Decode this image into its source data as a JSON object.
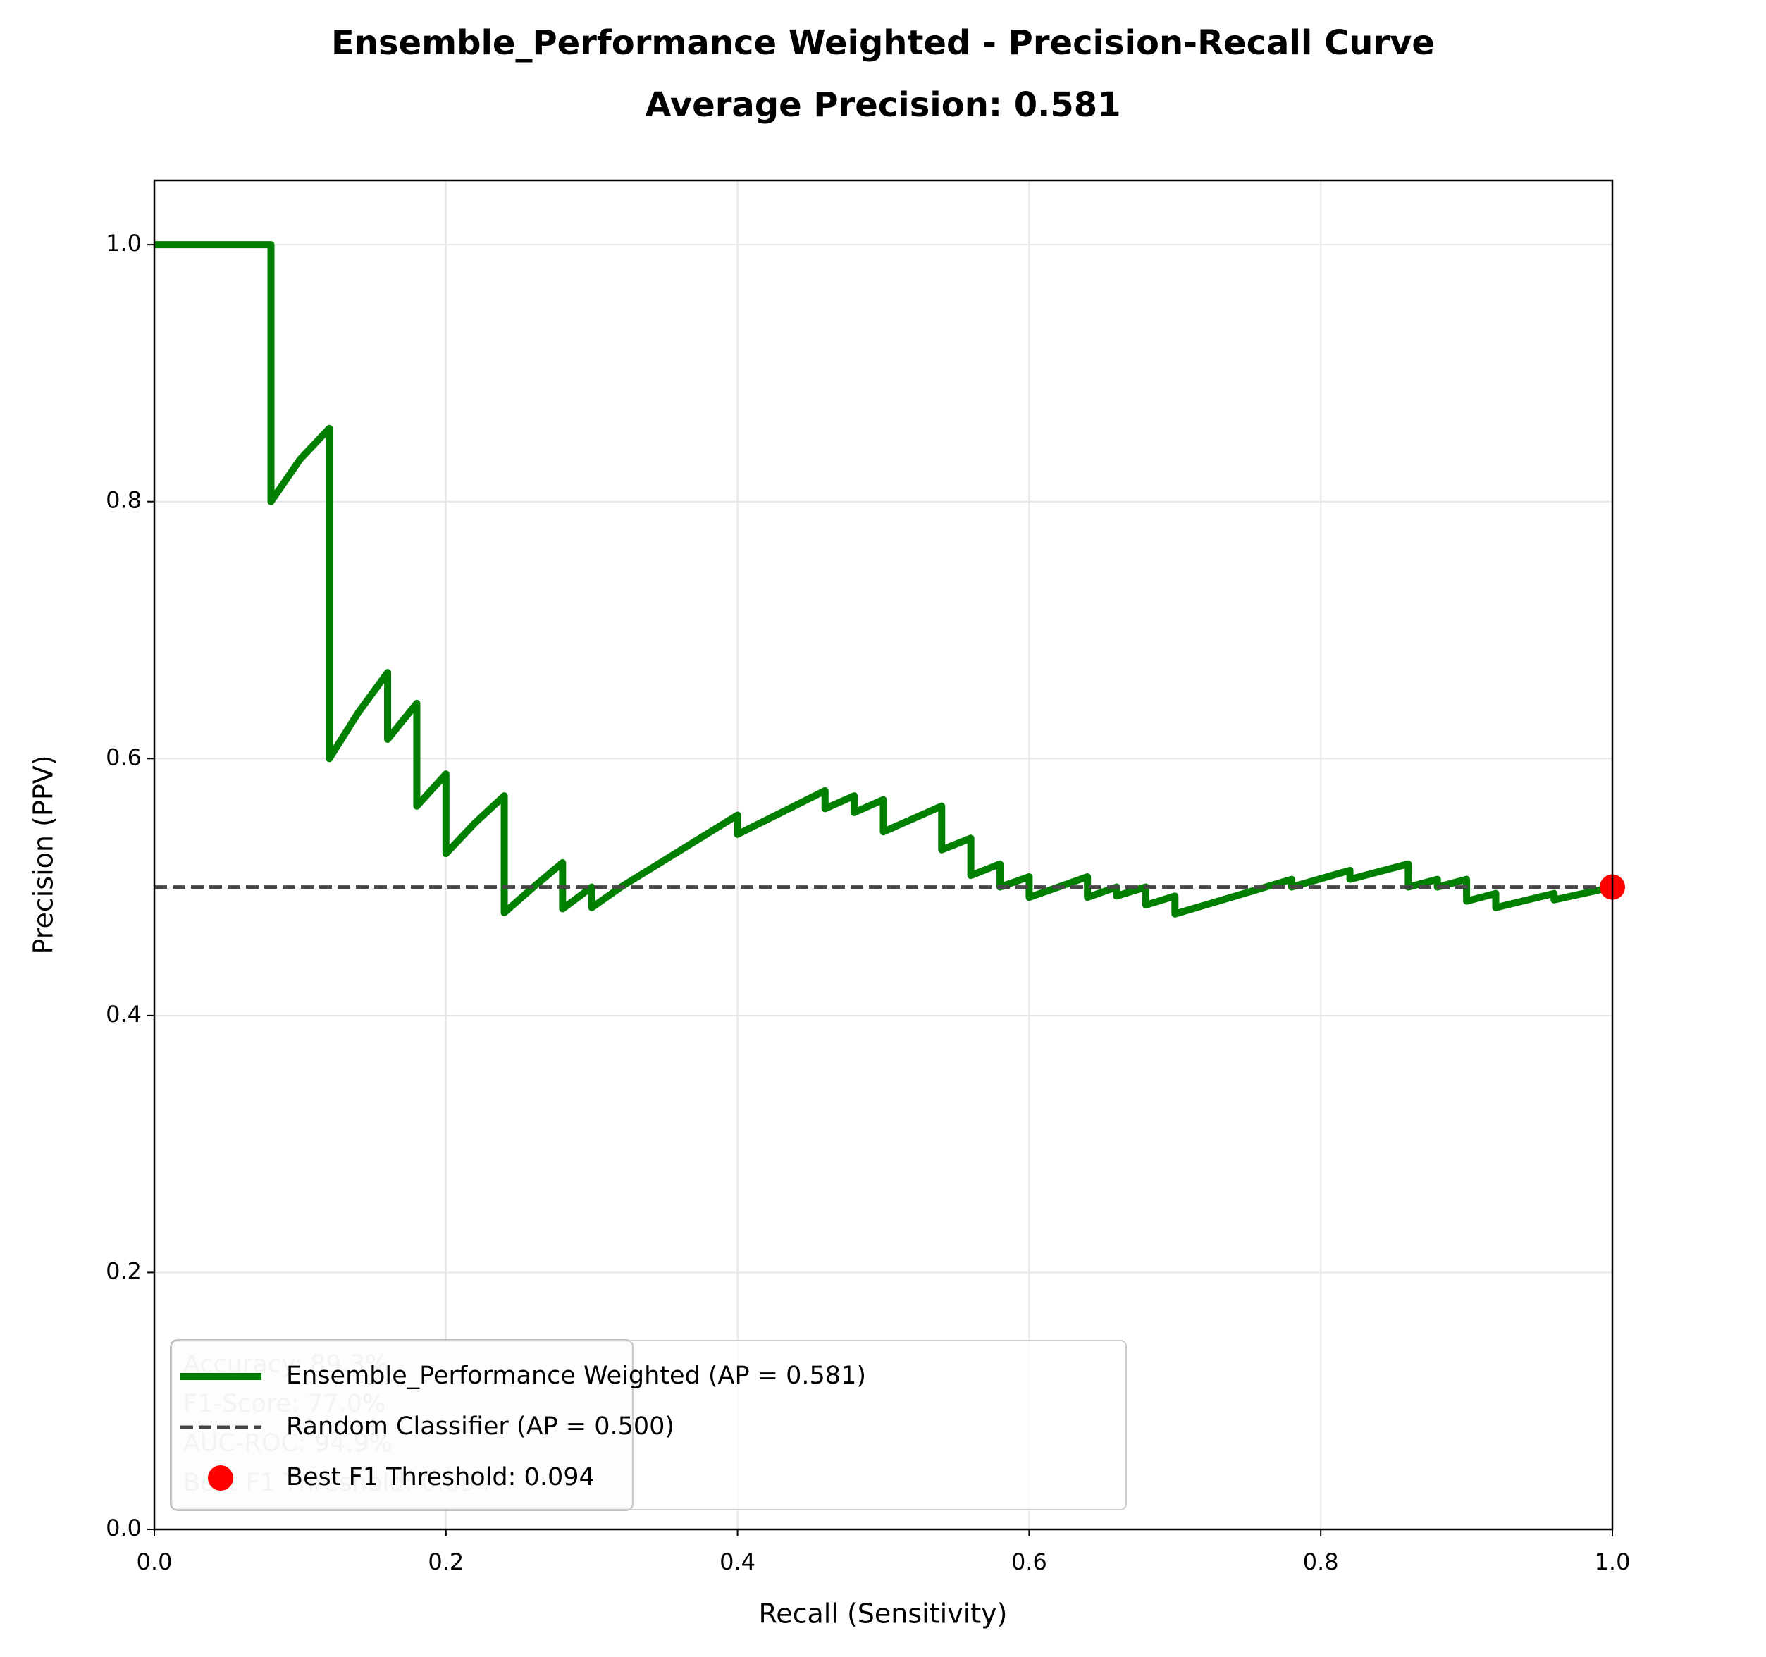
{
  "chart_data": {
    "type": "line",
    "title": "Ensemble_Performance Weighted - Precision-Recall Curve",
    "subtitle": "Average Precision: 0.581",
    "x_label": "Recall (Sensitivity)",
    "y_label": "Precision (PPV)",
    "xlim": [
      0,
      1
    ],
    "ylim": [
      0,
      1.05
    ],
    "xticks": [
      {
        "value": 0,
        "label": "0.0"
      },
      0.2,
      0.4,
      0.6,
      0.8,
      {
        "value": 1,
        "label": "1.0"
      }
    ],
    "yticks": [
      {
        "value": 0,
        "label": "0.0"
      },
      0.2,
      0.4,
      0.6,
      0.8,
      {
        "value": 1,
        "label": "1.0"
      }
    ],
    "grid": true,
    "legend": "lower left",
    "series": [
      {
        "name": "Ensemble_Performance Weighted (AP = 0.581)",
        "color": "#007f00",
        "style": "solid",
        "x": [
          0,
          0.08,
          0.08,
          0.1,
          0.12,
          0.12,
          0.14,
          0.16,
          0.16,
          0.18,
          0.18,
          0.2,
          0.2,
          0.22,
          0.24,
          0.24,
          0.26,
          0.28,
          0.28,
          0.3,
          0.3,
          0.32,
          0.4,
          0.4,
          0.46,
          0.46,
          0.48,
          0.48,
          0.5,
          0.5,
          0.54,
          0.54,
          0.56,
          0.56,
          0.58,
          0.58,
          0.6,
          0.6,
          0.64,
          0.64,
          0.66,
          0.66,
          0.68,
          0.68,
          0.7,
          0.7,
          0.78,
          0.78,
          0.82,
          0.82,
          0.86,
          0.86,
          0.88,
          0.88,
          0.9,
          0.9,
          0.92,
          0.92,
          0.96,
          0.96,
          1
        ],
        "values": [
          1,
          1,
          0.8,
          0.833,
          0.857,
          0.6,
          0.636,
          0.667,
          0.615,
          0.643,
          0.563,
          0.588,
          0.526,
          0.55,
          0.571,
          0.48,
          0.5,
          0.519,
          0.483,
          0.5,
          0.484,
          0.5,
          0.556,
          0.541,
          0.575,
          0.561,
          0.571,
          0.558,
          0.568,
          0.543,
          0.563,
          0.529,
          0.538,
          0.509,
          0.518,
          0.5,
          0.508,
          0.492,
          0.508,
          0.492,
          0.5,
          0.493,
          0.5,
          0.486,
          0.493,
          0.479,
          0.506,
          0.5,
          0.513,
          0.506,
          0.518,
          0.5,
          0.506,
          0.5,
          0.506,
          0.489,
          0.495,
          0.484,
          0.495,
          0.49,
          0.5
        ]
      },
      {
        "name": "Random Classifier (AP = 0.500)",
        "color": "#474747",
        "style": "dashed",
        "x": [
          0,
          1
        ],
        "values": [
          0.5,
          0.5
        ]
      },
      {
        "name": "Best F1 Threshold: 0.094",
        "color": "#ff0000",
        "style": "marker",
        "x": [
          1
        ],
        "values": [
          0.5
        ]
      }
    ],
    "stats_box": [
      "Accuracy: 89.3%",
      "F1-Score: 77.0%",
      "AUC-ROC: 94.9%",
      "Best F1 Threshold: 0.094"
    ]
  }
}
